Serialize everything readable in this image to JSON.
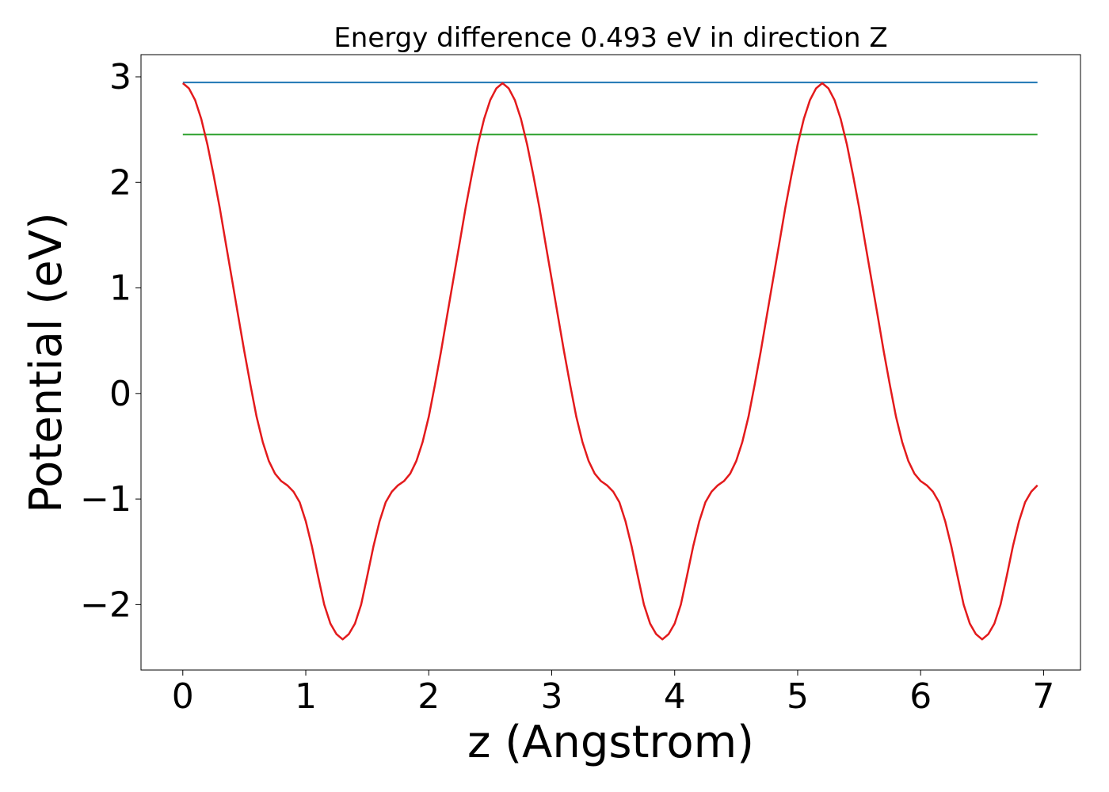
{
  "chart_data": {
    "type": "line",
    "title": "Energy difference 0.493 eV in direction Z",
    "xlabel": "z (Angstrom)",
    "ylabel": "Potential (eV)",
    "xlim": [
      -0.34,
      7.3
    ],
    "ylim": [
      -2.62,
      3.21
    ],
    "grid": false,
    "x_ticks": [
      0,
      1,
      2,
      3,
      4,
      5,
      6,
      7
    ],
    "x_tick_labels": [
      "0",
      "1",
      "2",
      "3",
      "4",
      "5",
      "6",
      "7"
    ],
    "y_ticks": [
      -2,
      -1,
      0,
      1,
      2,
      3
    ],
    "y_tick_labels": [
      "−2",
      "−1",
      "0",
      "1",
      "2",
      "3"
    ],
    "series": [
      {
        "role": "maximum",
        "color": "#1f77b4",
        "x": [
          0,
          6.95
        ],
        "y": [
          2.947,
          2.947
        ]
      },
      {
        "role": "maximum minus energy difference",
        "color": "#2ca02c",
        "x": [
          0,
          6.95
        ],
        "y": [
          2.454,
          2.454
        ]
      },
      {
        "role": "potential",
        "color": "#e31a1c",
        "x": [
          0,
          0.05,
          0.1,
          0.15,
          0.2,
          0.25,
          0.3,
          0.35,
          0.4,
          0.45,
          0.5,
          0.55,
          0.6,
          0.65,
          0.7,
          0.75,
          0.8,
          0.85,
          0.9,
          0.95,
          1.0,
          1.05,
          1.1,
          1.15,
          1.2,
          1.25,
          1.3,
          1.35,
          1.4,
          1.45,
          1.5,
          1.55,
          1.6,
          1.65,
          1.7,
          1.75,
          1.8,
          1.85,
          1.9,
          1.95,
          2.0,
          2.05,
          2.1,
          2.15,
          2.2,
          2.25,
          2.3,
          2.35,
          2.4,
          2.45,
          2.5,
          2.55,
          2.6,
          2.65,
          2.7,
          2.75,
          2.8,
          2.85,
          2.9,
          2.95,
          3.0,
          3.05,
          3.1,
          3.15,
          3.2,
          3.25,
          3.3,
          3.35,
          3.4,
          3.45,
          3.5,
          3.55,
          3.6,
          3.65,
          3.7,
          3.75,
          3.8,
          3.85,
          3.9,
          3.95,
          4.0,
          4.05,
          4.1,
          4.15,
          4.2,
          4.25,
          4.3,
          4.35,
          4.4,
          4.45,
          4.5,
          4.55,
          4.6,
          4.65,
          4.7,
          4.75,
          4.8,
          4.85,
          4.9,
          4.95,
          5.0,
          5.05,
          5.1,
          5.15,
          5.2,
          5.25,
          5.3,
          5.35,
          5.4,
          5.45,
          5.5,
          5.55,
          5.6,
          5.65,
          5.7,
          5.75,
          5.8,
          5.85,
          5.9,
          5.95,
          6.0,
          6.05,
          6.1,
          6.15,
          6.2,
          6.25,
          6.3,
          6.35,
          6.4,
          6.45,
          6.5,
          6.55,
          6.6,
          6.65,
          6.7,
          6.75,
          6.8,
          6.85,
          6.9,
          6.95
        ],
        "y": [
          2.94,
          2.89,
          2.78,
          2.6,
          2.36,
          2.07,
          1.76,
          1.42,
          1.08,
          0.74,
          0.4,
          0.08,
          -0.22,
          -0.46,
          -0.64,
          -0.76,
          -0.83,
          -0.87,
          -0.93,
          -1.03,
          -1.21,
          -1.45,
          -1.73,
          -2.0,
          -2.18,
          -2.28,
          -2.33,
          -2.28,
          -2.18,
          -2.0,
          -1.73,
          -1.45,
          -1.21,
          -1.03,
          -0.93,
          -0.87,
          -0.83,
          -0.76,
          -0.64,
          -0.46,
          -0.22,
          0.08,
          0.4,
          0.74,
          1.08,
          1.42,
          1.76,
          2.07,
          2.36,
          2.6,
          2.78,
          2.89,
          2.94,
          2.89,
          2.78,
          2.6,
          2.36,
          2.07,
          1.76,
          1.42,
          1.08,
          0.74,
          0.4,
          0.08,
          -0.22,
          -0.46,
          -0.64,
          -0.76,
          -0.83,
          -0.87,
          -0.93,
          -1.03,
          -1.21,
          -1.45,
          -1.73,
          -2.0,
          -2.18,
          -2.28,
          -2.33,
          -2.28,
          -2.18,
          -2.0,
          -1.73,
          -1.45,
          -1.21,
          -1.03,
          -0.93,
          -0.87,
          -0.83,
          -0.76,
          -0.64,
          -0.46,
          -0.22,
          0.08,
          0.4,
          0.74,
          1.08,
          1.42,
          1.76,
          2.07,
          2.36,
          2.6,
          2.78,
          2.89,
          2.94,
          2.89,
          2.78,
          2.6,
          2.36,
          2.07,
          1.76,
          1.42,
          1.08,
          0.74,
          0.4,
          0.08,
          -0.22,
          -0.46,
          -0.64,
          -0.76,
          -0.83,
          -0.87,
          -0.93,
          -1.03,
          -1.21,
          -1.45,
          -1.73,
          -2.0,
          -2.18,
          -2.28,
          -2.33,
          -2.28,
          -2.18,
          -2.0,
          -1.73,
          -1.45,
          -1.21,
          -1.03,
          -0.93,
          -0.87
        ]
      }
    ]
  }
}
